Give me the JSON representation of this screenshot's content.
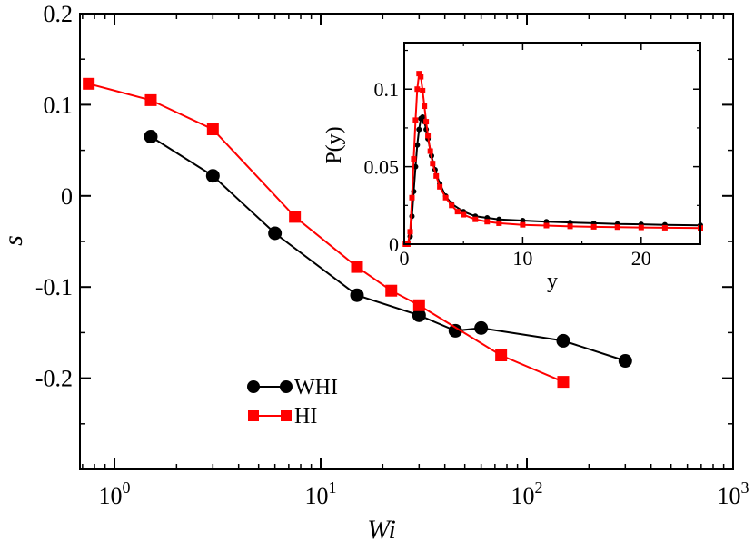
{
  "colors": {
    "whi": "#000000",
    "hi": "#ff0000"
  },
  "chart_data": [
    {
      "type": "line",
      "xscale": "log",
      "xlim": [
        0.68,
        1000
      ],
      "ylim": [
        -0.3,
        0.2
      ],
      "xlabel": "Wi",
      "ylabel": "s",
      "xticks": [
        1,
        10,
        100,
        1000
      ],
      "xtick_labels": [
        {
          "base": "10",
          "exp": "0"
        },
        {
          "base": "10",
          "exp": "1"
        },
        {
          "base": "10",
          "exp": "2"
        },
        {
          "base": "10",
          "exp": "3"
        }
      ],
      "yticks": [
        -0.2,
        -0.1,
        0,
        0.1,
        0.2
      ],
      "ytick_labels": [
        "-0.2",
        "-0.1",
        "0",
        "0.1",
        "0.2"
      ],
      "legend_position": "lower-left",
      "series": [
        {
          "name": "WHI",
          "marker": "circle",
          "color_key": "whi",
          "x": [
            1.5,
            3,
            6,
            15,
            30,
            45,
            60,
            150,
            300
          ],
          "y": [
            0.065,
            0.022,
            -0.041,
            -0.109,
            -0.131,
            -0.148,
            -0.145,
            -0.159,
            -0.181
          ]
        },
        {
          "name": "HI",
          "marker": "square",
          "color_key": "hi",
          "x": [
            0.75,
            1.5,
            3,
            7.5,
            15,
            22,
            30,
            75,
            150
          ],
          "y": [
            0.123,
            0.105,
            0.073,
            -0.023,
            -0.078,
            -0.104,
            -0.12,
            -0.175,
            -0.204
          ]
        }
      ]
    },
    {
      "type": "line",
      "inset": true,
      "xlim": [
        0,
        25
      ],
      "ylim": [
        0,
        0.13
      ],
      "xlabel": "y",
      "ylabel": "P(y)",
      "xticks": [
        0,
        10,
        20
      ],
      "xtick_labels": [
        "0",
        "10",
        "20"
      ],
      "yticks": [
        0,
        0.05,
        0.1
      ],
      "ytick_labels": [
        "0",
        "0.05",
        "0.1"
      ],
      "series": [
        {
          "name": "WHI",
          "marker": "circle",
          "color_key": "whi",
          "x": [
            0.1,
            0.3,
            0.5,
            0.65,
            0.8,
            0.95,
            1.1,
            1.25,
            1.4,
            1.55,
            1.7,
            1.85,
            2.0,
            2.3,
            2.6,
            3.0,
            3.5,
            4.0,
            5.0,
            6.0,
            7.0,
            8.0,
            10,
            12,
            14,
            16,
            18,
            20,
            22,
            25
          ],
          "y": [
            0,
            0,
            0.005,
            0.018,
            0.034,
            0.05,
            0.064,
            0.074,
            0.081,
            0.082,
            0.079,
            0.074,
            0.068,
            0.057,
            0.048,
            0.039,
            0.031,
            0.026,
            0.021,
            0.018,
            0.017,
            0.016,
            0.0152,
            0.0145,
            0.014,
            0.0135,
            0.013,
            0.0128,
            0.0125,
            0.0122
          ]
        },
        {
          "name": "HI",
          "marker": "square",
          "color_key": "hi",
          "x": [
            0.1,
            0.3,
            0.5,
            0.65,
            0.8,
            0.95,
            1.1,
            1.25,
            1.4,
            1.55,
            1.7,
            1.85,
            2.0,
            2.2,
            2.4,
            2.7,
            3.0,
            3.5,
            4.0,
            4.5,
            5.0,
            6.0,
            7.0,
            8.0,
            10,
            12,
            14,
            16,
            18,
            20,
            22,
            25
          ],
          "y": [
            0,
            0,
            0.008,
            0.03,
            0.055,
            0.08,
            0.1,
            0.11,
            0.108,
            0.099,
            0.089,
            0.079,
            0.07,
            0.06,
            0.052,
            0.044,
            0.037,
            0.03,
            0.025,
            0.021,
            0.019,
            0.016,
            0.0145,
            0.0135,
            0.0125,
            0.012,
            0.0115,
            0.0112,
            0.011,
            0.0108,
            0.0106,
            0.0104
          ]
        }
      ]
    }
  ]
}
